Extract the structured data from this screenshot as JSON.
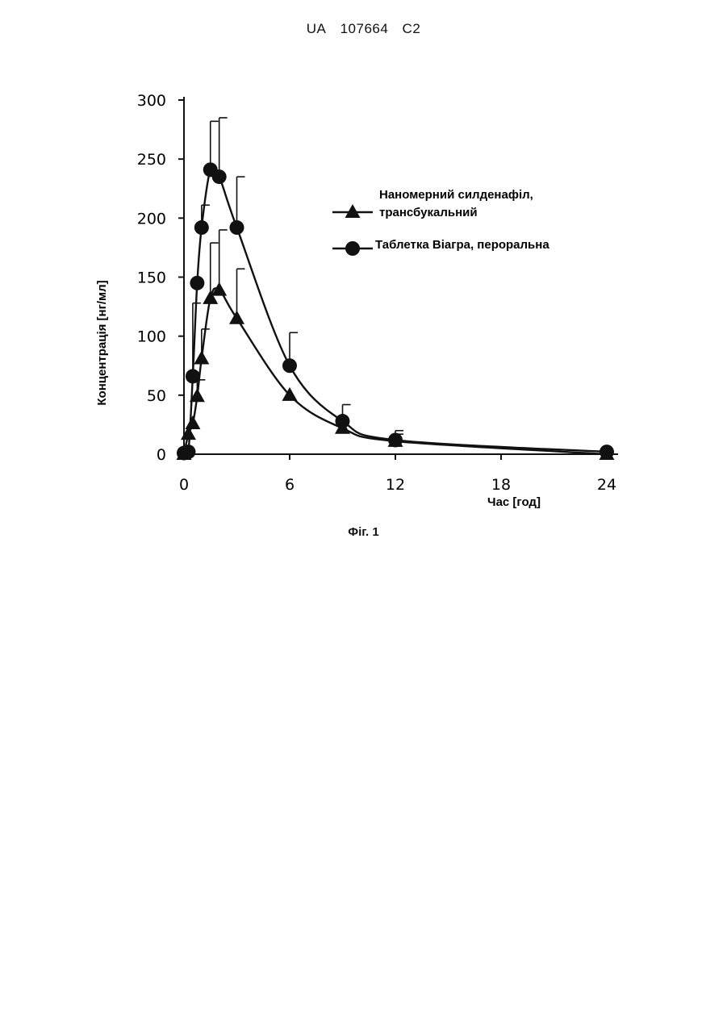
{
  "header": {
    "office": "UA",
    "number": "107664",
    "kind": "C2"
  },
  "figure_caption": "Фіг. 1",
  "chart_data": {
    "type": "line",
    "xlabel": "Час [год]",
    "ylabel": "Концентрація [нг/мл]",
    "xlim": [
      0,
      24
    ],
    "ylim": [
      0,
      300
    ],
    "xticks": [
      0,
      6,
      12,
      18,
      24
    ],
    "yticks": [
      0,
      50,
      100,
      150,
      200,
      250,
      300
    ],
    "grid": false,
    "legend_position": "right",
    "series": [
      {
        "name": "Наномерний силденафіл, трансбукальний",
        "name_lines": [
          "Наномерний силденафіл,",
          "трансбукальний"
        ],
        "marker": "triangle",
        "x": [
          0,
          0.25,
          0.5,
          0.75,
          1,
          1.5,
          2,
          3,
          6,
          9,
          12,
          24
        ],
        "y": [
          0,
          17,
          26,
          49,
          81,
          132,
          139,
          115,
          50,
          22,
          11,
          0
        ],
        "error": [
          0,
          0,
          0,
          14,
          25,
          47,
          51,
          42,
          0,
          0,
          6,
          0
        ]
      },
      {
        "name": "Таблетка Віагра, пероральна",
        "name_lines": [
          "Таблетка Віагра, пероральна"
        ],
        "marker": "circle",
        "x": [
          0,
          0.25,
          0.5,
          0.75,
          1,
          1.5,
          2,
          3,
          6,
          9,
          12,
          24
        ],
        "y": [
          1,
          2,
          66,
          145,
          192,
          241,
          235,
          192,
          75,
          28,
          12,
          2
        ],
        "error": [
          0,
          0,
          62,
          0,
          19,
          41,
          50,
          43,
          28,
          14,
          8,
          0
        ]
      }
    ]
  }
}
